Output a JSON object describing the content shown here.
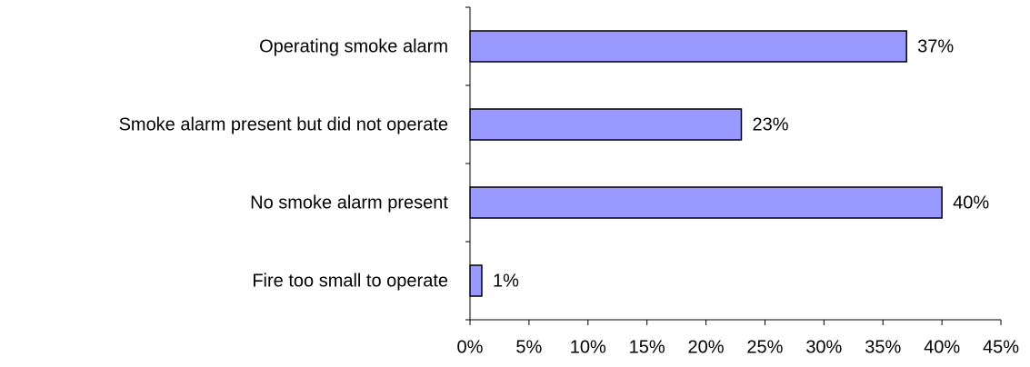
{
  "chart_data": {
    "type": "bar",
    "orientation": "horizontal",
    "categories": [
      "Operating smoke alarm",
      "Smoke alarm present but did not operate",
      "No smoke alarm present",
      "Fire too small to operate"
    ],
    "values": [
      37,
      23,
      40,
      1
    ],
    "value_labels": [
      "37%",
      "23%",
      "40%",
      "1%"
    ],
    "color": "#9999ff",
    "xlim": [
      0,
      45
    ],
    "xticks": [
      {
        "value": 0,
        "label": "0%"
      },
      {
        "value": 5,
        "label": "5%"
      },
      {
        "value": 10,
        "label": "10%"
      },
      {
        "value": 15,
        "label": "15%"
      },
      {
        "value": 20,
        "label": "20%"
      },
      {
        "value": 25,
        "label": "25%"
      },
      {
        "value": 30,
        "label": "30%"
      },
      {
        "value": 35,
        "label": "35%"
      },
      {
        "value": 40,
        "label": "40%"
      },
      {
        "value": 45,
        "label": "45%"
      }
    ],
    "grid": false
  }
}
